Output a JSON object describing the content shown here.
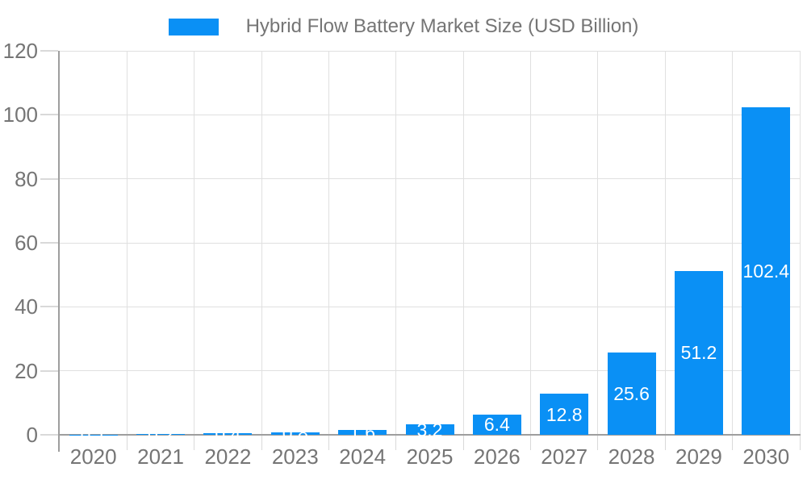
{
  "chart_data": {
    "type": "bar",
    "title": "Hybrid Flow Battery Market Size (USD Billion)",
    "categories": [
      "2020",
      "2021",
      "2022",
      "2023",
      "2024",
      "2025",
      "2026",
      "2027",
      "2028",
      "2029",
      "2030"
    ],
    "values": [
      0.1,
      0.2,
      0.4,
      0.8,
      1.6,
      3.2,
      6.4,
      12.8,
      25.6,
      51.2,
      102.4
    ],
    "bar_labels": [
      "0.1",
      "0.2",
      "0.4",
      "0.8",
      "1.6",
      "3.2",
      "6.4",
      "12.8",
      "25.6",
      "51.2",
      "102.4"
    ],
    "xlabel": "",
    "ylabel": "",
    "ylim": [
      0,
      120
    ],
    "yticks": [
      0,
      20,
      40,
      60,
      80,
      100,
      120
    ],
    "grid": true,
    "legend_position": "top",
    "colors": {
      "bar": "#0A90F5",
      "bar_label": "#ffffff",
      "grid": "#e0e0e0",
      "tick": "#d9d9d9",
      "axis": "#9e9e9e",
      "text": "#757575",
      "background": "#ffffff"
    }
  }
}
